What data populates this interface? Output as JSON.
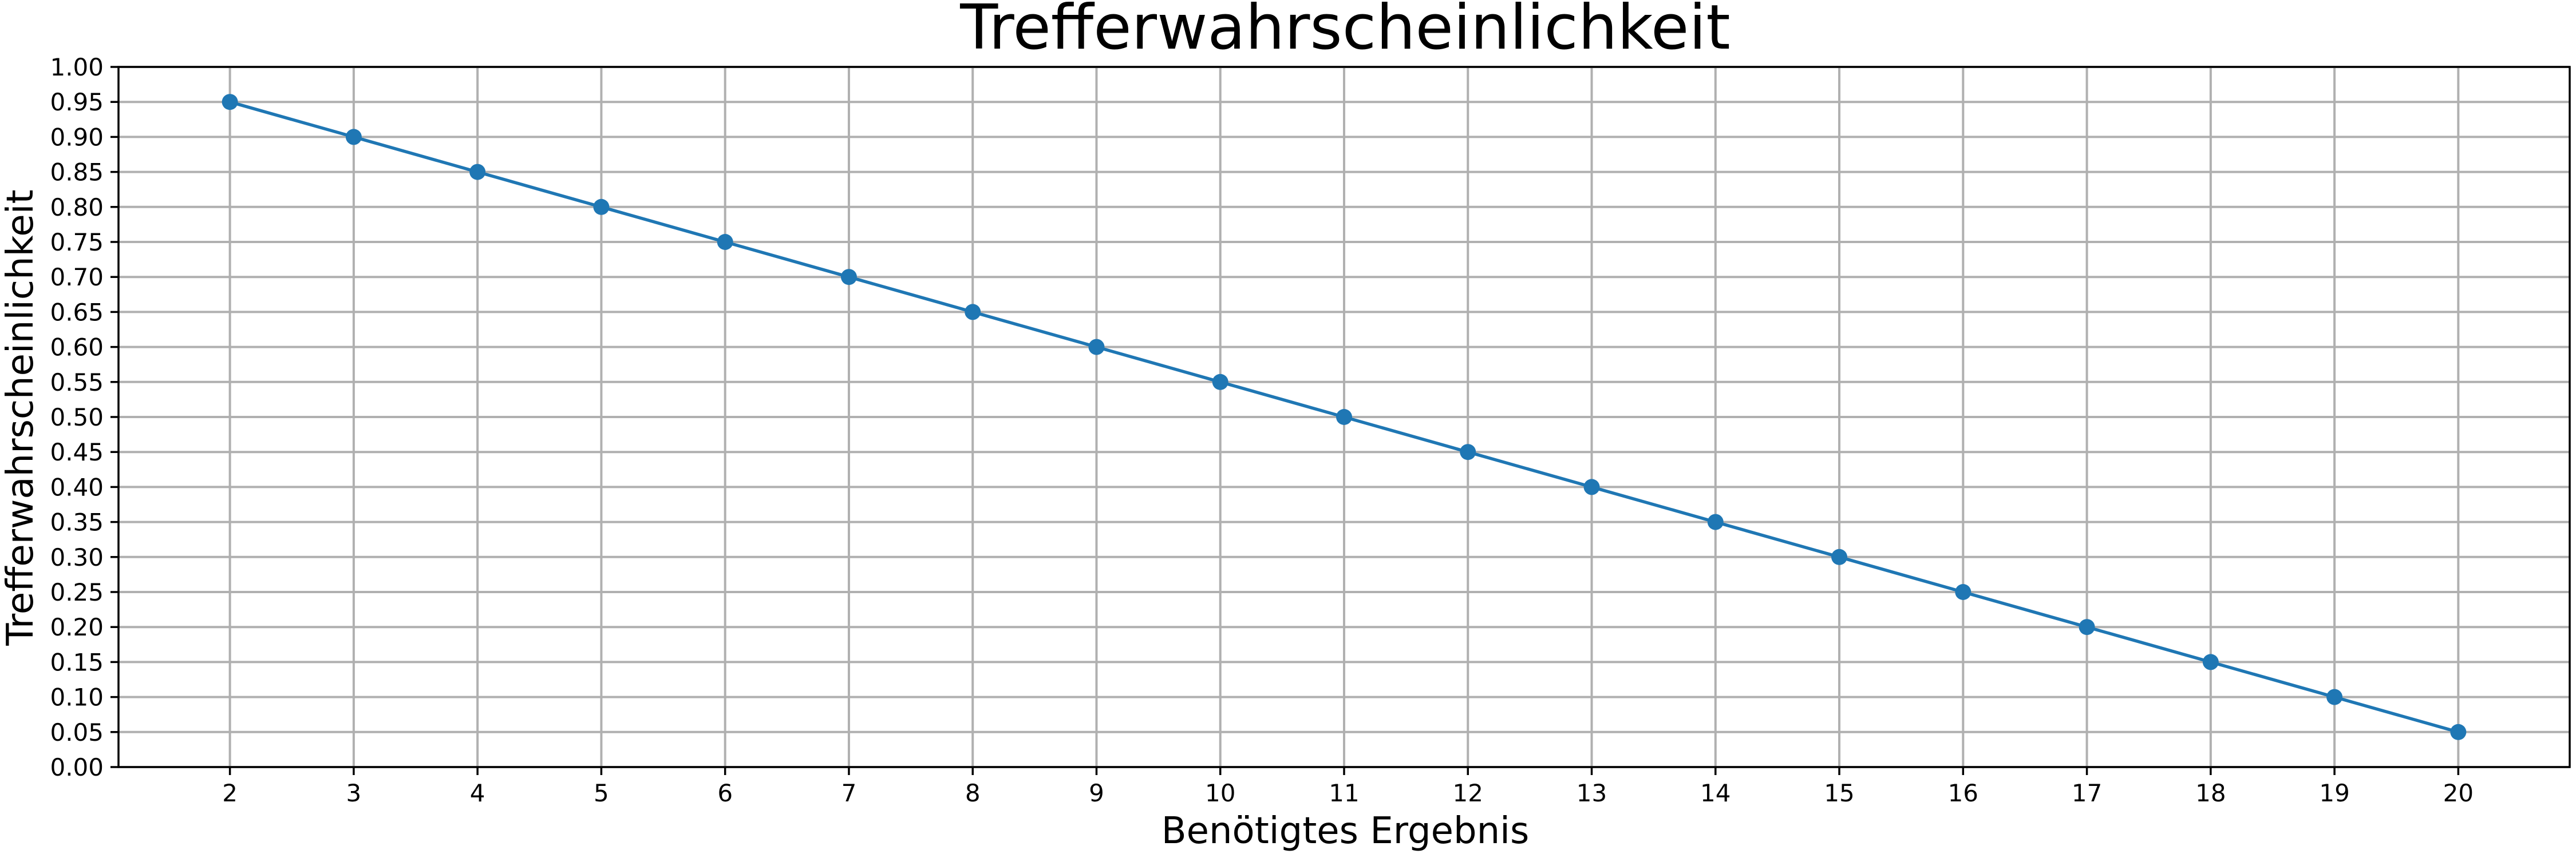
{
  "chart_data": {
    "type": "line",
    "title": "Trefferwahrscheinlichkeit",
    "xlabel": "Benötigtes Ergebnis",
    "ylabel": "Trefferwahrscheinlichkeit",
    "x": [
      2,
      3,
      4,
      5,
      6,
      7,
      8,
      9,
      10,
      11,
      12,
      13,
      14,
      15,
      16,
      17,
      18,
      19,
      20
    ],
    "series": [
      {
        "values": [
          0.95,
          0.9,
          0.85,
          0.8,
          0.75,
          0.7,
          0.65,
          0.6,
          0.55,
          0.5,
          0.45,
          0.4,
          0.35,
          0.3,
          0.25,
          0.2,
          0.15,
          0.1,
          0.05
        ],
        "color": "#1f77b4",
        "marker": "circle"
      }
    ],
    "xlim": [
      1.1,
      20.9
    ],
    "ylim": [
      0,
      1
    ],
    "xticks": [
      "2",
      "3",
      "4",
      "5",
      "6",
      "7",
      "8",
      "9",
      "10",
      "11",
      "12",
      "13",
      "14",
      "15",
      "16",
      "17",
      "18",
      "19",
      "20"
    ],
    "yticks": [
      "0.00",
      "0.05",
      "0.10",
      "0.15",
      "0.20",
      "0.25",
      "0.30",
      "0.35",
      "0.40",
      "0.45",
      "0.50",
      "0.55",
      "0.60",
      "0.65",
      "0.70",
      "0.75",
      "0.80",
      "0.85",
      "0.90",
      "0.95",
      "1.00"
    ],
    "grid": true,
    "legend": "none"
  }
}
